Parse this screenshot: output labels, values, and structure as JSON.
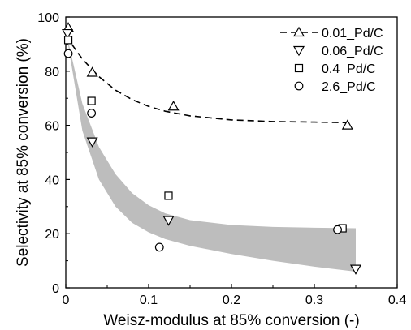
{
  "chart_data": {
    "type": "scatter",
    "xlabel": "Weisz-modulus at 85% conversion (-)",
    "ylabel": "Selectivity at 85% conversion (%)",
    "xlim": [
      0,
      0.4
    ],
    "ylim": [
      0,
      100
    ],
    "x_ticks": [
      "0",
      "0.1",
      "0.2",
      "0.3",
      "0.4"
    ],
    "y_ticks": [
      "0",
      "20",
      "40",
      "60",
      "80",
      "100"
    ],
    "grid": false,
    "legend_position": "top-right",
    "series": [
      {
        "name": "0.01_Pd/C",
        "marker": "triangle-up",
        "points": [
          [
            0.003,
            96
          ],
          [
            0.032,
            79.5
          ],
          [
            0.13,
            67
          ],
          [
            0.34,
            60
          ]
        ]
      },
      {
        "name": "0.06_Pd/C",
        "marker": "triangle-down",
        "points": [
          [
            0.002,
            94
          ],
          [
            0.032,
            54
          ],
          [
            0.124,
            25
          ],
          [
            0.35,
            7
          ]
        ]
      },
      {
        "name": "0.4_Pd/C",
        "marker": "square",
        "points": [
          [
            0.003,
            91.5
          ],
          [
            0.031,
            69
          ],
          [
            0.124,
            34
          ],
          [
            0.334,
            22
          ]
        ]
      },
      {
        "name": "2.6_Pd/C",
        "marker": "circle",
        "points": [
          [
            0.003,
            86.5
          ],
          [
            0.031,
            64.5
          ],
          [
            0.113,
            15
          ],
          [
            0.328,
            21.5
          ]
        ]
      }
    ],
    "fit_curve": {
      "series": "0.01_Pd/C",
      "style": "dashed",
      "points": [
        [
          0,
          93
        ],
        [
          0.02,
          84.5
        ],
        [
          0.04,
          78
        ],
        [
          0.06,
          73
        ],
        [
          0.08,
          69.5
        ],
        [
          0.1,
          67
        ],
        [
          0.12,
          65.2
        ],
        [
          0.15,
          63.5
        ],
        [
          0.2,
          62
        ],
        [
          0.25,
          61.4
        ],
        [
          0.3,
          61.2
        ],
        [
          0.34,
          61
        ]
      ]
    },
    "band": {
      "fill": "#bdbdbd",
      "upper": [
        [
          0,
          95
        ],
        [
          0.02,
          68
        ],
        [
          0.04,
          52
        ],
        [
          0.06,
          42
        ],
        [
          0.08,
          35
        ],
        [
          0.1,
          30.5
        ],
        [
          0.12,
          27.5
        ],
        [
          0.15,
          25
        ],
        [
          0.2,
          23.2
        ],
        [
          0.25,
          22.5
        ],
        [
          0.3,
          22.2
        ],
        [
          0.35,
          22
        ]
      ],
      "lower": [
        [
          0,
          95
        ],
        [
          0.02,
          58
        ],
        [
          0.04,
          40
        ],
        [
          0.06,
          30
        ],
        [
          0.08,
          24
        ],
        [
          0.1,
          20.5
        ],
        [
          0.12,
          18
        ],
        [
          0.15,
          15.5
        ],
        [
          0.2,
          12.5
        ],
        [
          0.25,
          10
        ],
        [
          0.3,
          7.8
        ],
        [
          0.35,
          6
        ]
      ]
    }
  }
}
